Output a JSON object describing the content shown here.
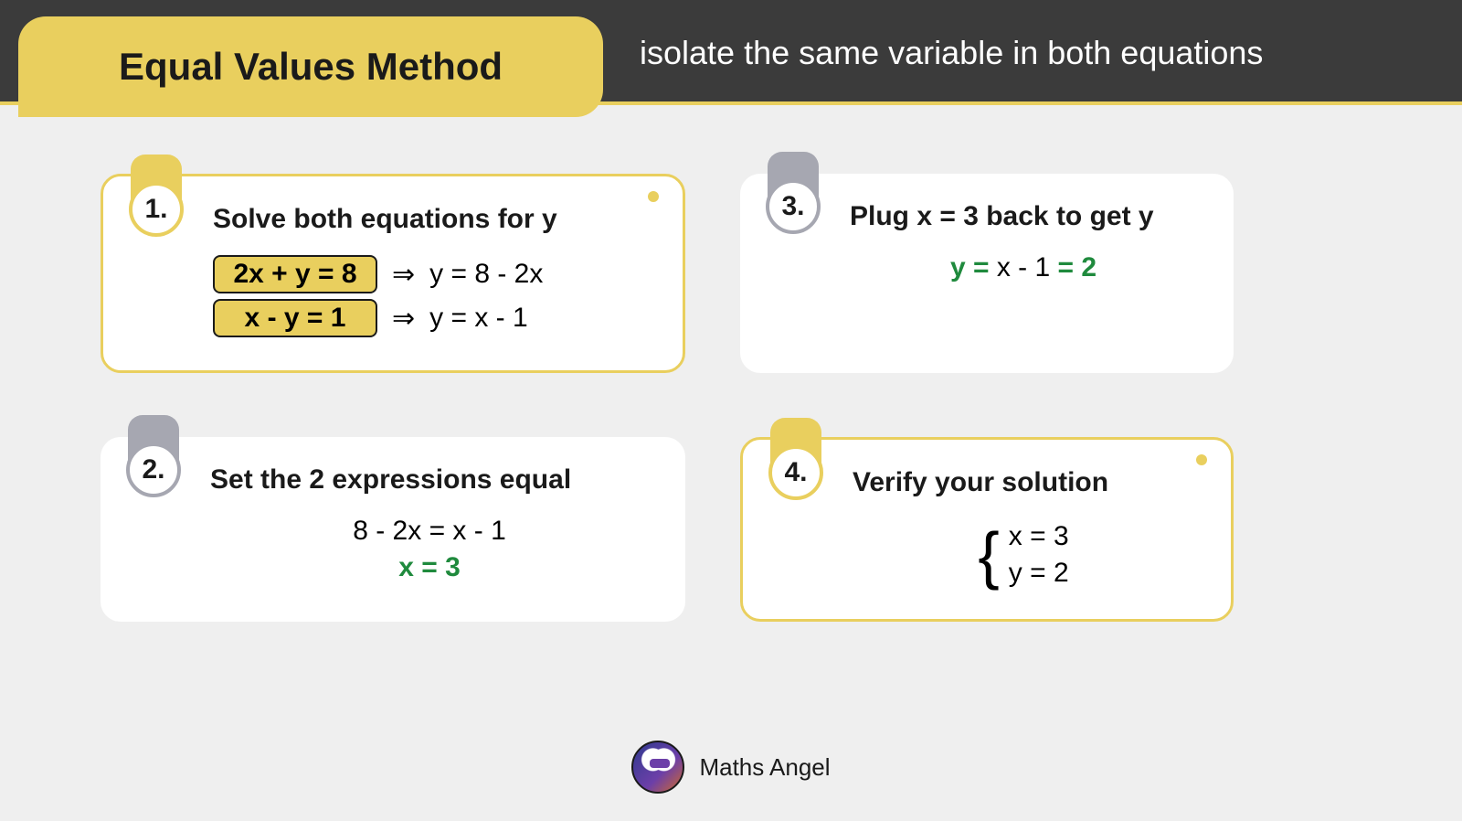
{
  "colors": {
    "accent": "#e9cf5e",
    "dark": "#3b3b3b",
    "bg": "#efefef",
    "green": "#1f8a3d",
    "grey": "#a6a7b1"
  },
  "header": {
    "title": "Equal Values Method",
    "subtitle": "isolate the same variable in both equations"
  },
  "cards": [
    {
      "num": "1.",
      "highlight": true,
      "tab_color": "yellow",
      "title": "Solve both equations for y",
      "eq1_box": "2x + y = 8",
      "eq1_rhs": "y = 8 - 2x",
      "eq2_box": "x - y = 1",
      "eq2_rhs": "y = x - 1",
      "arrow": "⇒"
    },
    {
      "num": "3.",
      "highlight": false,
      "tab_color": "grey",
      "title": "Plug x = 3 back to get y",
      "line_pre": "y = ",
      "line_mid": "x - 1",
      "line_post": " = 2"
    },
    {
      "num": "2.",
      "highlight": false,
      "tab_color": "grey",
      "title": "Set the 2 expressions equal",
      "line1": "8 - 2x  =  x - 1",
      "line2": "x  =  3"
    },
    {
      "num": "4.",
      "highlight": true,
      "tab_color": "yellow",
      "title": "Verify your solution",
      "sys1": "x = 3",
      "sys2": "y = 2",
      "brace": "{"
    }
  ],
  "footer": {
    "brand": "Maths Angel"
  }
}
